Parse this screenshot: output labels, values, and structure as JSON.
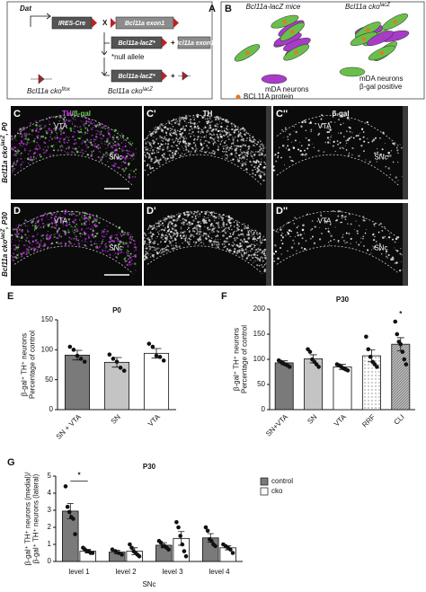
{
  "panels": {
    "A": {
      "label": "A",
      "dat": "Dat",
      "ires_cre": "IRES-Cre",
      "cross": "X",
      "exon1": "Bcl11a exon1",
      "lacz": "Bcl11a-lacZ*",
      "plus": "+",
      "exon1_b": "Bcl11a exon1",
      "null_allele": "*null allele",
      "lacz_b": "Bcl11a-lacZ*",
      "plus_b": "+",
      "flox": {
        "text": "Bcl11a cko",
        "sup": "flox"
      },
      "lacz_cko": {
        "text": "Bcl11a cko",
        "sup": "lacZ"
      }
    },
    "B": {
      "label": "B",
      "mice1": "Bcl11a-lacZ mice",
      "mice2": {
        "text": "Bcl11a cko",
        "sup": "lacZ"
      },
      "legend": [
        "mDA neurons",
        "mDA neurons",
        "β-gal positive",
        "BCL11A protein"
      ]
    }
  },
  "images": {
    "headers": [
      {
        "parts": [
          {
            "text": "TH",
            "color": "#d040e8"
          },
          {
            "text": "/β-gal",
            "color": "#6fd05a"
          }
        ]
      },
      {
        "parts": [
          {
            "text": "TH",
            "color": "#ffffff"
          }
        ]
      },
      {
        "parts": [
          {
            "text": "β-gal",
            "color": "#ffffff"
          }
        ]
      }
    ],
    "rows": [
      {
        "labels": [
          "C",
          "C'",
          "C''"
        ],
        "side": {
          "text": "Bcl11a cko",
          "sup": "lacZ",
          "suffix": ", P0"
        },
        "regions": [
          [
            "VTA",
            "SNc"
          ],
          [],
          [
            "VTA",
            "SNc"
          ]
        ]
      },
      {
        "labels": [
          "D",
          "D'",
          "D''"
        ],
        "side": {
          "text": "Bcl11a cko",
          "sup": "lacZ",
          "suffix": ", P30"
        },
        "regions": [
          [
            "VTA",
            "SNc"
          ],
          [],
          [
            "VTA",
            "SNc"
          ]
        ]
      }
    ]
  },
  "chart_data": [
    {
      "type": "bar",
      "panel": "E",
      "title": "P0",
      "ylabel": [
        "β-gal⁺ TH⁺ neurons",
        "Percentage of control"
      ],
      "categories": [
        "SN + VTA",
        "SN",
        "VTA"
      ],
      "colors": [
        "#7a7a7a",
        "#c4c4c4",
        "#ffffff"
      ],
      "values": [
        91,
        79,
        94
      ],
      "errors": [
        8,
        8,
        8
      ],
      "points": [
        [
          105,
          100,
          90,
          85,
          80
        ],
        [
          92,
          85,
          80,
          70,
          65
        ],
        [
          110,
          105,
          90,
          88,
          82
        ]
      ],
      "ylim": [
        0,
        150
      ],
      "yticks": [
        0,
        50,
        100,
        150
      ]
    },
    {
      "type": "bar",
      "panel": "F",
      "title": "P30",
      "ylabel": [
        "β-gal⁺ TH⁺ neurons",
        "Percentage of control"
      ],
      "categories": [
        "SN+VTA",
        "SN",
        "VTA",
        "RRF",
        "CLI"
      ],
      "colors": [
        "#7a7a7a",
        "#c4c4c4",
        "#ffffff",
        "#ffffff",
        "#b8b8b8"
      ],
      "patterns": [
        "solid",
        "solid",
        "solid",
        "dots",
        "hatch"
      ],
      "values": [
        93,
        101,
        85,
        107,
        130
      ],
      "errors": [
        4,
        8,
        5,
        12,
        13
      ],
      "points": [
        [
          98,
          95,
          92,
          90,
          88,
          85
        ],
        [
          120,
          115,
          100,
          95,
          90,
          85
        ],
        [
          90,
          88,
          85,
          82,
          80,
          78
        ],
        [
          145,
          120,
          105,
          95,
          90,
          85
        ],
        [
          175,
          150,
          135,
          130,
          115,
          100,
          90
        ]
      ],
      "significance": [
        {
          "label": "*",
          "category": "CLI"
        }
      ],
      "ylim": [
        0,
        200
      ],
      "yticks": [
        0,
        50,
        100,
        150,
        200
      ]
    },
    {
      "type": "grouped_bar",
      "panel": "G",
      "title": "P30",
      "ylabel": [
        "β-gal⁺ TH⁺ neurons (medial)/",
        "β-gal⁺ TH⁺ neurons (lateral)"
      ],
      "xlabel": "SNc",
      "categories": [
        "level 1",
        "level 2",
        "level 3",
        "level 4"
      ],
      "series": [
        {
          "name": "control",
          "color": "#7a7a7a",
          "values": [
            2.95,
            0.55,
            0.95,
            1.38
          ],
          "errors": [
            0.45,
            0.1,
            0.15,
            0.25
          ],
          "points": [
            [
              4.4,
              3.2,
              2.9,
              2.6,
              2.5,
              1.6
            ],
            [
              0.7,
              0.6,
              0.5,
              0.4
            ],
            [
              1.2,
              1.1,
              0.9,
              0.9,
              0.8,
              0.7
            ],
            [
              2.0,
              1.8,
              1.3,
              1.2,
              1.0,
              0.9
            ]
          ]
        },
        {
          "name": "cko",
          "color": "#ffffff",
          "values": [
            0.6,
            0.6,
            1.35,
            0.8
          ],
          "errors": [
            0.1,
            0.2,
            0.4,
            0.12
          ],
          "points": [
            [
              0.8,
              0.7,
              0.6,
              0.6,
              0.5,
              0.5
            ],
            [
              1.0,
              0.8,
              0.6,
              0.5,
              0.4,
              0.3
            ],
            [
              2.3,
              2.0,
              1.5,
              1.0,
              0.6,
              0.3
            ],
            [
              1.0,
              0.9,
              0.8,
              0.7,
              0.5
            ]
          ]
        }
      ],
      "significance": [
        {
          "label": "*",
          "category": "level 1"
        }
      ],
      "legend": "top-right",
      "ylim": [
        0,
        5
      ],
      "yticks": [
        0,
        1,
        2,
        3,
        4,
        5
      ]
    }
  ]
}
